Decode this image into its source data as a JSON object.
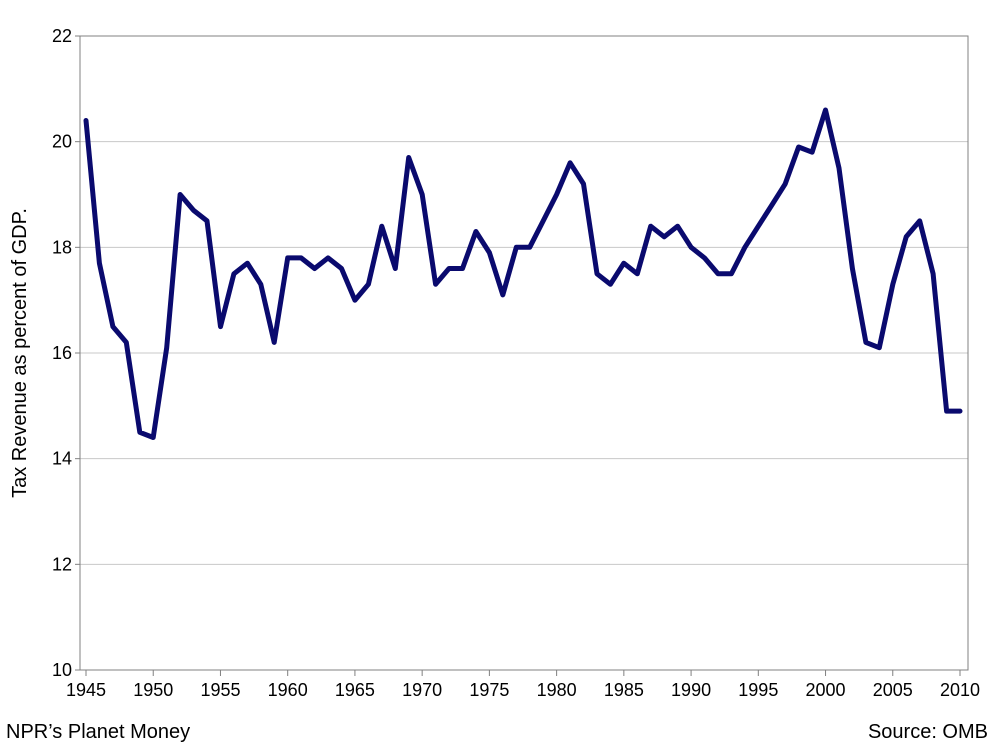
{
  "chart_data": {
    "type": "line",
    "title": "",
    "xlabel": "",
    "ylabel": "Tax Revenue as percent of GDP.",
    "xlim": [
      1945,
      2010
    ],
    "ylim": [
      10,
      22
    ],
    "y_ticks": [
      10,
      12,
      14,
      16,
      18,
      20,
      22
    ],
    "x_tick_labels": [
      "1945",
      "1950",
      "1955",
      "1960",
      "1965",
      "1970",
      "1975",
      "1980",
      "1985",
      "1990",
      "1995",
      "2000",
      "2005",
      "2010"
    ],
    "grid": "horizontal",
    "series": [
      {
        "name": "Tax Revenue",
        "color": "#0a0a6e",
        "x": [
          1945,
          1946,
          1947,
          1948,
          1949,
          1950,
          1951,
          1952,
          1953,
          1954,
          1955,
          1956,
          1957,
          1958,
          1959,
          1960,
          1961,
          1962,
          1963,
          1964,
          1965,
          1966,
          1967,
          1968,
          1969,
          1970,
          1971,
          1972,
          1973,
          1974,
          1975,
          1976,
          1977,
          1978,
          1979,
          1980,
          1981,
          1982,
          1983,
          1984,
          1985,
          1986,
          1987,
          1988,
          1989,
          1990,
          1991,
          1992,
          1993,
          1994,
          1995,
          1996,
          1997,
          1998,
          1999,
          2000,
          2001,
          2002,
          2003,
          2004,
          2005,
          2006,
          2007,
          2008,
          2009,
          2010
        ],
        "values": [
          20.4,
          17.7,
          16.5,
          16.2,
          14.5,
          14.4,
          16.1,
          19.0,
          18.7,
          18.5,
          16.5,
          17.5,
          17.7,
          17.3,
          16.2,
          17.8,
          17.8,
          17.6,
          17.8,
          17.6,
          17.0,
          17.3,
          18.4,
          17.6,
          19.7,
          19.0,
          17.3,
          17.6,
          17.6,
          18.3,
          17.9,
          17.1,
          18.0,
          18.0,
          18.5,
          19.0,
          19.6,
          19.2,
          17.5,
          17.3,
          17.7,
          17.5,
          18.4,
          18.2,
          18.4,
          18.0,
          17.8,
          17.5,
          17.5,
          18.0,
          18.4,
          18.8,
          19.2,
          19.9,
          19.8,
          20.6,
          19.5,
          17.6,
          16.2,
          16.1,
          17.3,
          18.2,
          18.5,
          17.5,
          14.9,
          14.9
        ]
      }
    ]
  },
  "footer": {
    "credit": "NPR’s Planet Money",
    "source": "Source: OMB"
  }
}
